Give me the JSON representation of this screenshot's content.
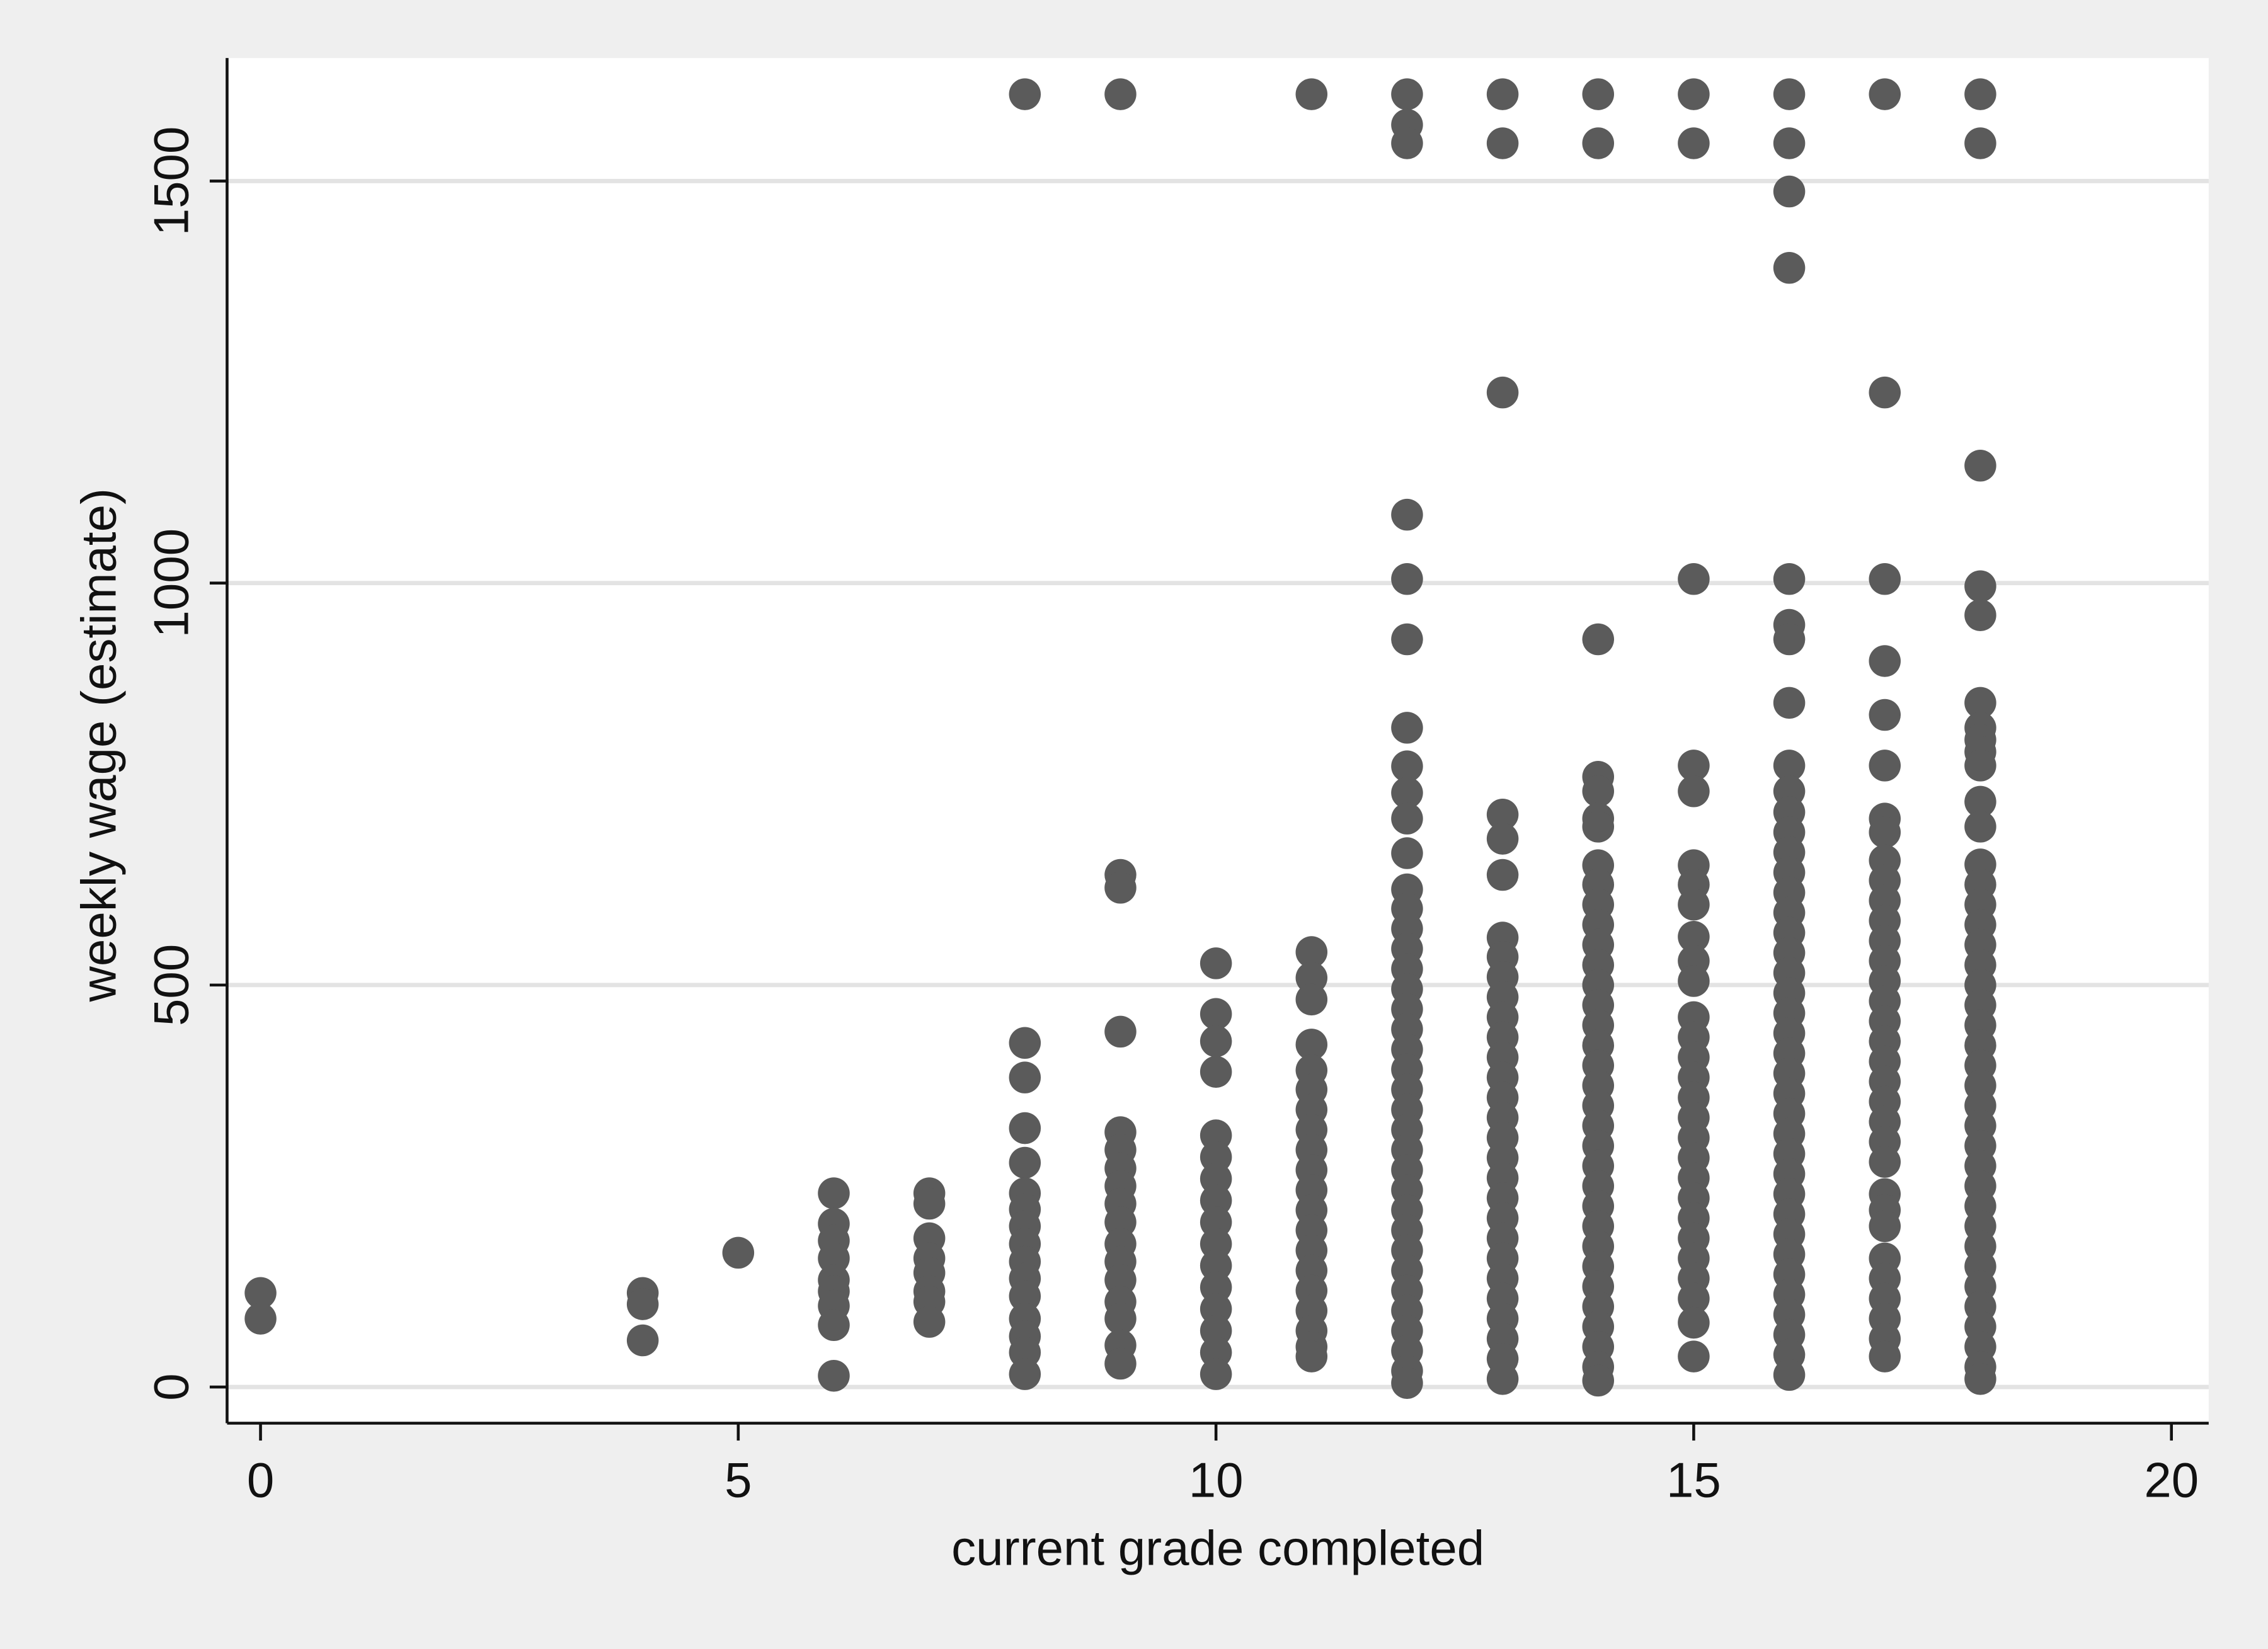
{
  "chart_data": {
    "type": "scatter",
    "x_label": "current grade completed",
    "y_label": "weekly wage (estimate)",
    "color": "#5b5b5b",
    "grid": true,
    "xlim": [
      -0.35,
      20.39
    ],
    "ylim": [
      -45,
      1653
    ],
    "xticks": [
      0,
      5,
      10,
      15,
      20
    ],
    "yticks": [
      0,
      500,
      1000,
      1500
    ],
    "x": [
      0,
      0,
      4,
      4,
      4,
      5,
      6,
      6,
      6,
      6,
      6,
      6,
      6,
      6,
      6,
      7,
      7,
      7,
      7,
      7,
      7,
      7,
      7,
      8,
      8,
      8,
      8,
      8,
      8,
      8,
      8,
      8,
      8,
      8,
      8,
      8,
      8,
      8,
      8,
      9,
      9,
      9,
      9,
      9,
      9,
      9,
      9,
      9,
      9,
      9,
      9,
      9,
      9,
      9,
      9,
      9,
      10,
      10,
      10,
      10,
      10,
      10,
      10,
      10,
      10,
      10,
      10,
      10,
      10,
      10,
      10,
      10,
      11,
      11,
      11,
      11,
      11,
      11,
      11,
      11,
      11,
      11,
      11,
      11,
      11,
      11,
      11,
      11,
      11,
      11,
      11,
      11,
      11,
      12,
      12,
      12,
      12,
      12,
      12,
      12,
      12,
      12,
      12,
      12,
      12,
      12,
      12,
      12,
      12,
      12,
      12,
      12,
      12,
      12,
      12,
      12,
      12,
      12,
      12,
      12,
      12,
      12,
      12,
      12,
      12,
      12,
      12,
      12,
      12,
      12,
      13,
      13,
      13,
      13,
      13,
      13,
      13,
      13,
      13,
      13,
      13,
      13,
      13,
      13,
      13,
      13,
      13,
      13,
      13,
      13,
      13,
      13,
      13,
      13,
      13,
      13,
      13,
      13,
      13,
      14,
      14,
      14,
      14,
      14,
      14,
      14,
      14,
      14,
      14,
      14,
      14,
      14,
      14,
      14,
      14,
      14,
      14,
      14,
      14,
      14,
      14,
      14,
      14,
      14,
      14,
      14,
      14,
      14,
      14,
      14,
      14,
      14,
      14,
      15,
      15,
      15,
      15,
      15,
      15,
      15,
      15,
      15,
      15,
      15,
      15,
      15,
      15,
      15,
      15,
      15,
      15,
      15,
      15,
      15,
      15,
      15,
      15,
      15,
      15,
      15,
      15,
      16,
      16,
      16,
      16,
      16,
      16,
      16,
      16,
      16,
      16,
      16,
      16,
      16,
      16,
      16,
      16,
      16,
      16,
      16,
      16,
      16,
      16,
      16,
      16,
      16,
      16,
      16,
      16,
      16,
      16,
      16,
      16,
      16,
      16,
      16,
      16,
      16,
      16,
      16,
      17,
      17,
      17,
      17,
      17,
      17,
      17,
      17,
      17,
      17,
      17,
      17,
      17,
      17,
      17,
      17,
      17,
      17,
      17,
      17,
      17,
      17,
      17,
      17,
      17,
      17,
      17,
      17,
      17,
      17,
      17,
      17,
      17,
      18,
      18,
      18,
      18,
      18,
      18,
      18,
      18,
      18,
      18,
      18,
      18,
      18,
      18,
      18,
      18,
      18,
      18,
      18,
      18,
      18,
      18,
      18,
      18,
      18,
      18,
      18,
      18,
      18,
      18,
      18,
      18,
      18,
      18,
      18,
      18,
      18,
      18,
      18
    ],
    "values": [
      117,
      85,
      117,
      103,
      58,
      167,
      241,
      203,
      182,
      160,
      133,
      119,
      101,
      77,
      14,
      241,
      228,
      185,
      160,
      142,
      119,
      106,
      81,
      1608,
      428,
      385,
      322,
      279,
      241,
      221,
      200,
      178,
      156,
      135,
      113,
      85,
      63,
      43,
      16,
      1608,
      637,
      621,
      442,
      317,
      295,
      272,
      250,
      228,
      205,
      178,
      156,
      133,
      106,
      85,
      52,
      29,
      527,
      464,
      430,
      392,
      313,
      286,
      259,
      232,
      205,
      178,
      151,
      124,
      97,
      70,
      43,
      16,
      1608,
      541,
      509,
      482,
      426,
      394,
      370,
      345,
      320,
      295,
      270,
      245,
      220,
      195,
      170,
      145,
      120,
      95,
      70,
      50,
      38,
      1608,
      1570,
      1547,
      1085,
      1005,
      930,
      820,
      772,
      739,
      707,
      664,
      619,
      595,
      570,
      545,
      520,
      495,
      470,
      445,
      420,
      395,
      370,
      345,
      320,
      295,
      270,
      245,
      220,
      195,
      170,
      145,
      120,
      95,
      70,
      45,
      20,
      5,
      1608,
      1547,
      1237,
      712,
      682,
      637,
      559,
      535,
      510,
      485,
      460,
      435,
      410,
      385,
      360,
      335,
      310,
      285,
      260,
      235,
      210,
      185,
      160,
      135,
      110,
      85,
      60,
      35,
      10,
      1608,
      1547,
      930,
      759,
      741,
      707,
      697,
      649,
      625,
      600,
      575,
      550,
      525,
      500,
      475,
      450,
      425,
      400,
      375,
      350,
      325,
      300,
      275,
      250,
      225,
      200,
      175,
      150,
      125,
      100,
      75,
      50,
      25,
      8,
      1608,
      1547,
      1005,
      773,
      741,
      649,
      625,
      600,
      560,
      530,
      505,
      460,
      435,
      410,
      385,
      360,
      335,
      310,
      285,
      260,
      235,
      210,
      185,
      160,
      135,
      110,
      80,
      38,
      1608,
      1547,
      1487,
      1392,
      1005,
      948,
      930,
      851,
      773,
      741,
      715,
      690,
      665,
      640,
      615,
      590,
      565,
      540,
      515,
      490,
      465,
      440,
      415,
      390,
      365,
      340,
      315,
      290,
      265,
      240,
      215,
      190,
      165,
      140,
      115,
      90,
      65,
      40,
      15,
      1608,
      1237,
      1005,
      903,
      836,
      773,
      707,
      690,
      655,
      630,
      605,
      580,
      555,
      530,
      505,
      480,
      455,
      430,
      405,
      380,
      355,
      330,
      305,
      280,
      240,
      220,
      200,
      160,
      135,
      110,
      85,
      60,
      38,
      1608,
      1547,
      1146,
      996,
      960,
      851,
      820,
      805,
      790,
      773,
      728,
      697,
      650,
      625,
      600,
      575,
      550,
      525,
      500,
      475,
      450,
      425,
      400,
      375,
      350,
      325,
      300,
      275,
      250,
      225,
      200,
      175,
      150,
      125,
      100,
      75,
      50,
      25,
      10
    ]
  }
}
